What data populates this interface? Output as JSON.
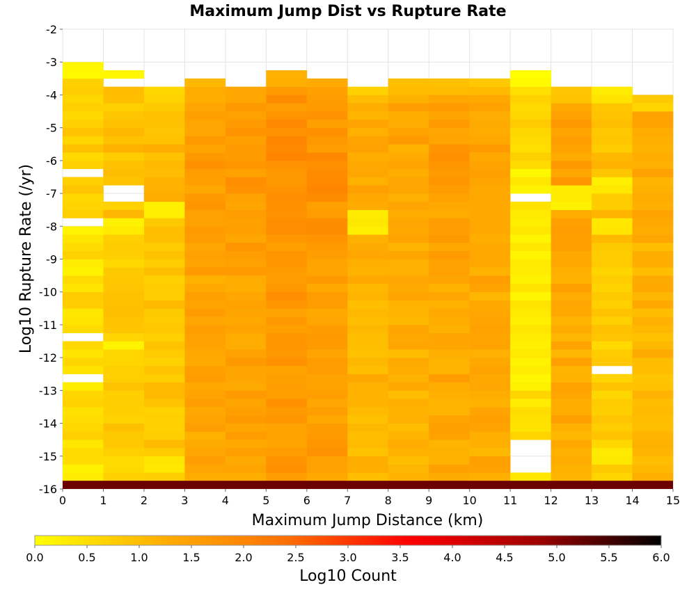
{
  "chart_data": {
    "type": "heatmap",
    "title": "Maximum Jump Dist vs Rupture Rate",
    "xlabel": "Maximum Jump Distance (km)",
    "ylabel": "Log10 Rupture Rate (/yr)",
    "xlim": [
      0,
      15
    ],
    "ylim": [
      -16,
      -2
    ],
    "x_ticks": [
      "0",
      "1",
      "2",
      "3",
      "4",
      "5",
      "6",
      "7",
      "8",
      "9",
      "10",
      "11",
      "12",
      "13",
      "14",
      "15"
    ],
    "y_ticks": [
      "-2",
      "-3",
      "-4",
      "-5",
      "-6",
      "-7",
      "-8",
      "-9",
      "-10",
      "-11",
      "-12",
      "-13",
      "-14",
      "-15",
      "-16"
    ],
    "x_bin_width": 1,
    "y_bin_height": 0.25,
    "colorbar": {
      "label": "Log10 Count",
      "min": 0.0,
      "max": 6.0,
      "ticks": [
        "0.0",
        "0.5",
        "1.0",
        "1.5",
        "2.0",
        "2.5",
        "3.0",
        "3.5",
        "4.0",
        "4.5",
        "5.0",
        "5.5",
        "6.0"
      ],
      "colors": [
        "#ffff00",
        "#ffb000",
        "#ff7000",
        "#ff0000",
        "#a00000",
        "#000000"
      ]
    },
    "columns": [
      {
        "x": 0.5,
        "top": -3.0,
        "base": 0.55,
        "missing": [
          -6.375,
          -7.875,
          -11.375,
          -12.625
        ],
        "low": [
          [
            -15.75,
            -15.25
          ],
          [
            -12.875,
            -12.5
          ],
          [
            -8.375,
            -7.75
          ],
          [
            -9.375,
            -9.0
          ]
        ]
      },
      {
        "x": 1.5,
        "top": -3.25,
        "base": 0.75,
        "missing": [
          -3.625,
          -6.875,
          -7.125
        ],
        "low": [
          [
            -3.5,
            -3.25
          ],
          [
            -11.75,
            -11.5
          ],
          [
            -8.25,
            -7.875
          ]
        ]
      },
      {
        "x": 2.5,
        "top": -3.75,
        "base": 0.9,
        "missing": [],
        "low": [
          [
            -7.75,
            -7.375
          ],
          [
            -15.5,
            -15.0
          ]
        ]
      },
      {
        "x": 3.5,
        "top": -3.5,
        "base": 1.35,
        "missing": [],
        "low": []
      },
      {
        "x": 4.5,
        "top": -3.75,
        "base": 1.45,
        "missing": [],
        "low": []
      },
      {
        "x": 5.5,
        "top": -3.25,
        "base": 1.6,
        "missing": [],
        "low": []
      },
      {
        "x": 6.5,
        "top": -3.5,
        "base": 1.55,
        "missing": [],
        "low": []
      },
      {
        "x": 7.5,
        "top": -3.75,
        "base": 1.15,
        "missing": [],
        "low": [
          [
            -8.25,
            -7.5
          ]
        ]
      },
      {
        "x": 8.5,
        "top": -3.5,
        "base": 1.2,
        "missing": [],
        "low": []
      },
      {
        "x": 9.5,
        "top": -3.5,
        "base": 1.35,
        "missing": [],
        "low": []
      },
      {
        "x": 10.5,
        "top": -3.5,
        "base": 1.3,
        "missing": [],
        "low": []
      },
      {
        "x": 11.5,
        "top": -3.25,
        "base": 0.45,
        "missing": [
          -7.125,
          -14.625,
          -14.875,
          -15.125,
          -15.375
        ],
        "low": [
          [
            -7.0,
            -6.375
          ],
          [
            -13.0,
            -7.5
          ],
          [
            -16.0,
            -15.5
          ]
        ]
      },
      {
        "x": 12.5,
        "top": -3.75,
        "base": 1.3,
        "missing": [],
        "low": [
          [
            -7.5,
            -6.875
          ]
        ]
      },
      {
        "x": 13.5,
        "top": -3.75,
        "base": 0.75,
        "missing": [
          -12.375
        ],
        "low": [
          [
            -7.0,
            -6.5
          ],
          [
            -8.25,
            -7.875
          ],
          [
            -15.25,
            -14.875
          ]
        ]
      },
      {
        "x": 14.5,
        "top": -4.0,
        "base": 1.1,
        "missing": [],
        "low": []
      }
    ],
    "bottom_row": {
      "y": -15.875,
      "value": 5.2
    }
  }
}
